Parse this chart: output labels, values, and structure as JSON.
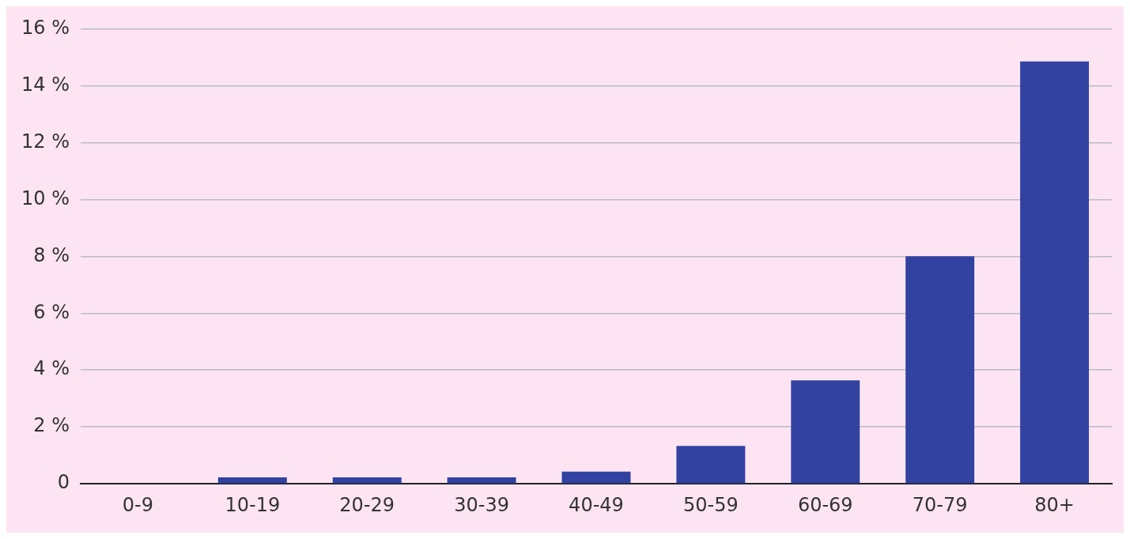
{
  "chart_data": {
    "type": "bar",
    "categories": [
      "0-9",
      "10-19",
      "20-29",
      "30-39",
      "40-49",
      "50-59",
      "60-69",
      "70-79",
      "80+"
    ],
    "values": [
      0,
      0.23,
      0.23,
      0.23,
      0.43,
      1.33,
      3.64,
      8.0,
      14.85
    ],
    "color": "#3142a0",
    "ylim": [
      0,
      16
    ],
    "yticks": [
      0,
      {
        "value": 2,
        "label": "2 %"
      },
      {
        "value": 4,
        "label": "4 %"
      },
      {
        "value": 6,
        "label": "6 %"
      },
      {
        "value": 8,
        "label": "8 %"
      },
      {
        "value": 10,
        "label": "10 %"
      },
      {
        "value": 12,
        "label": "12 %"
      },
      {
        "value": 14,
        "label": "14 %"
      },
      {
        "value": 16,
        "label": "16 %"
      }
    ],
    "grid": "y",
    "legend": false
  }
}
